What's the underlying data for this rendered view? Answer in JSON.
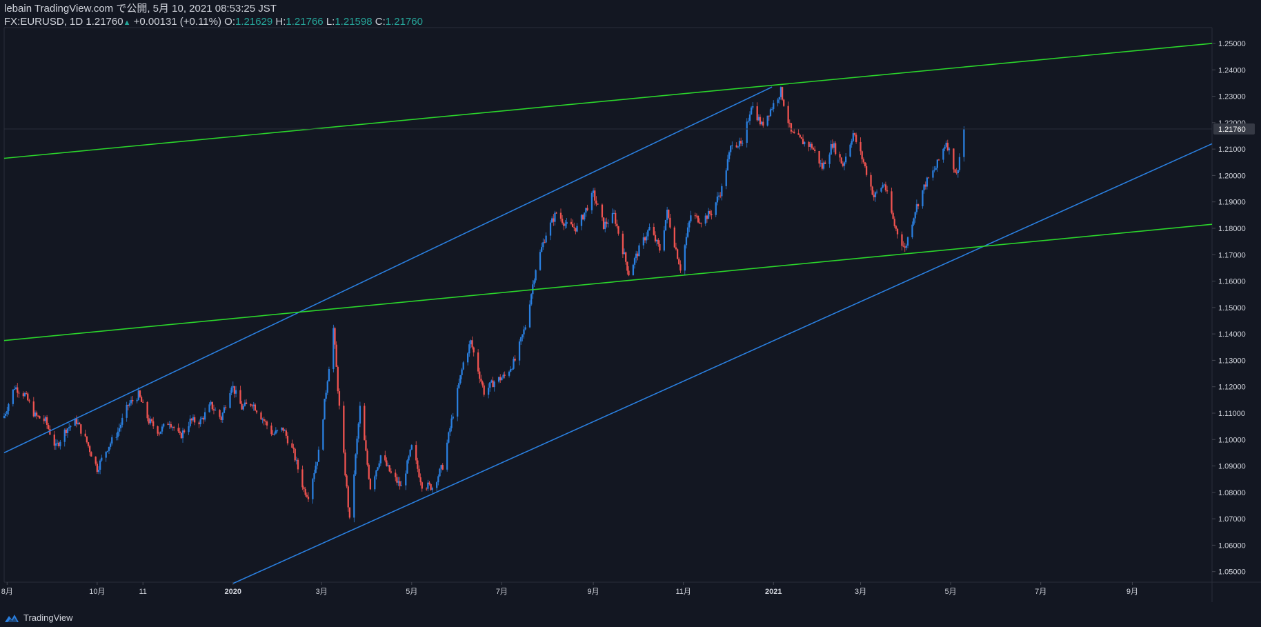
{
  "header": {
    "publish_line": "lebain TradingView.com で公開, 5月 10, 2021 08:53:25 JST",
    "symbol": "FX:EURUSD, 1D",
    "last": "1.21760",
    "change": "+0.00131 (+0.11%)",
    "o_label": "O:",
    "o_value": "1.21629",
    "h_label": "H:",
    "h_value": "1.21766",
    "l_label": "L:",
    "l_value": "1.21598",
    "c_label": "C:",
    "c_value": "1.21760"
  },
  "footer": {
    "brand": "TradingView"
  },
  "colors": {
    "background": "#131722",
    "up": "#2a7fdf",
    "down": "#ef5350",
    "trend_blue": "#2a7fdf",
    "trend_green": "#2bd62b",
    "text": "#d1d4dc",
    "accent": "#26a69a"
  },
  "chart_data": {
    "type": "candlestick",
    "symbol": "FX:EURUSD",
    "interval": "1D",
    "price_axis": {
      "ticks": [
        "1.25000",
        "1.24000",
        "1.23000",
        "1.22000",
        "1.21000",
        "1.20000",
        "1.19000",
        "1.18000",
        "1.17000",
        "1.16000",
        "1.15000",
        "1.14000",
        "1.13000",
        "1.12000",
        "1.11000",
        "1.10000",
        "1.09000",
        "1.08000",
        "1.07000",
        "1.06000",
        "1.05000"
      ],
      "range": [
        1.046,
        1.256
      ],
      "current_price_label": "1.21760",
      "current_price": 1.2176
    },
    "time_axis": {
      "ticks": [
        {
          "label": "8月",
          "date": "2019-08-01"
        },
        {
          "label": "10月",
          "date": "2019-10-01"
        },
        {
          "label": "11",
          "date": "2019-11-01"
        },
        {
          "label": "2020",
          "date": "2020-01-01"
        },
        {
          "label": "3月",
          "date": "2020-03-01"
        },
        {
          "label": "5月",
          "date": "2020-05-01"
        },
        {
          "label": "7月",
          "date": "2020-07-01"
        },
        {
          "label": "9月",
          "date": "2020-09-01"
        },
        {
          "label": "11月",
          "date": "2020-11-01"
        },
        {
          "label": "2021",
          "date": "2021-01-01"
        },
        {
          "label": "3月",
          "date": "2021-03-01"
        },
        {
          "label": "5月",
          "date": "2021-05-01"
        },
        {
          "label": "7月",
          "date": "2021-07-01"
        },
        {
          "label": "9月",
          "date": "2021-09-01"
        }
      ],
      "range": [
        "2019-07-30",
        "2021-10-25"
      ]
    },
    "price_path": [
      [
        "2019-07-30",
        1.109
      ],
      [
        "2019-08-06",
        1.12
      ],
      [
        "2019-08-13",
        1.117
      ],
      [
        "2019-08-20",
        1.109
      ],
      [
        "2019-08-27",
        1.107
      ],
      [
        "2019-09-03",
        1.097
      ],
      [
        "2019-09-10",
        1.104
      ],
      [
        "2019-09-17",
        1.107
      ],
      [
        "2019-09-24",
        1.099
      ],
      [
        "2019-10-01",
        1.089
      ],
      [
        "2019-10-08",
        1.097
      ],
      [
        "2019-10-15",
        1.103
      ],
      [
        "2019-10-22",
        1.113
      ],
      [
        "2019-10-29",
        1.117
      ],
      [
        "2019-11-05",
        1.107
      ],
      [
        "2019-11-12",
        1.103
      ],
      [
        "2019-11-19",
        1.107
      ],
      [
        "2019-11-26",
        1.101
      ],
      [
        "2019-12-03",
        1.107
      ],
      [
        "2019-12-10",
        1.107
      ],
      [
        "2019-12-17",
        1.113
      ],
      [
        "2019-12-24",
        1.108
      ],
      [
        "2019-12-31",
        1.121
      ],
      [
        "2020-01-07",
        1.112
      ],
      [
        "2020-01-14",
        1.114
      ],
      [
        "2020-01-21",
        1.108
      ],
      [
        "2020-01-28",
        1.102
      ],
      [
        "2020-02-04",
        1.104
      ],
      [
        "2020-02-11",
        1.095
      ],
      [
        "2020-02-18",
        1.081
      ],
      [
        "2020-02-21",
        1.079
      ],
      [
        "2020-02-28",
        1.095
      ],
      [
        "2020-03-06",
        1.128
      ],
      [
        "2020-03-09",
        1.142
      ],
      [
        "2020-03-13",
        1.112
      ],
      [
        "2020-03-20",
        1.069
      ],
      [
        "2020-03-27",
        1.112
      ],
      [
        "2020-04-03",
        1.082
      ],
      [
        "2020-04-10",
        1.094
      ],
      [
        "2020-04-17",
        1.087
      ],
      [
        "2020-04-24",
        1.082
      ],
      [
        "2020-05-01",
        1.097
      ],
      [
        "2020-05-08",
        1.083
      ],
      [
        "2020-05-15",
        1.082
      ],
      [
        "2020-05-22",
        1.09
      ],
      [
        "2020-05-29",
        1.11
      ],
      [
        "2020-06-05",
        1.129
      ],
      [
        "2020-06-10",
        1.137
      ],
      [
        "2020-06-19",
        1.118
      ],
      [
        "2020-06-26",
        1.122
      ],
      [
        "2020-07-03",
        1.124
      ],
      [
        "2020-07-10",
        1.13
      ],
      [
        "2020-07-17",
        1.143
      ],
      [
        "2020-07-24",
        1.165
      ],
      [
        "2020-07-31",
        1.178
      ],
      [
        "2020-08-07",
        1.186
      ],
      [
        "2020-08-14",
        1.181
      ],
      [
        "2020-08-21",
        1.18
      ],
      [
        "2020-09-01",
        1.193
      ],
      [
        "2020-09-08",
        1.181
      ],
      [
        "2020-09-15",
        1.185
      ],
      [
        "2020-09-25",
        1.163
      ],
      [
        "2020-10-02",
        1.172
      ],
      [
        "2020-10-09",
        1.18
      ],
      [
        "2020-10-16",
        1.172
      ],
      [
        "2020-10-21",
        1.186
      ],
      [
        "2020-10-30",
        1.165
      ],
      [
        "2020-11-06",
        1.185
      ],
      [
        "2020-11-13",
        1.183
      ],
      [
        "2020-11-20",
        1.186
      ],
      [
        "2020-11-27",
        1.195
      ],
      [
        "2020-12-04",
        1.213
      ],
      [
        "2020-12-11",
        1.211
      ],
      [
        "2020-12-17",
        1.227
      ],
      [
        "2020-12-24",
        1.219
      ],
      [
        "2021-01-06",
        1.232
      ],
      [
        "2021-01-13",
        1.216
      ],
      [
        "2021-01-20",
        1.213
      ],
      [
        "2021-01-27",
        1.211
      ],
      [
        "2021-02-03",
        1.203
      ],
      [
        "2021-02-10",
        1.212
      ],
      [
        "2021-02-17",
        1.204
      ],
      [
        "2021-02-24",
        1.216
      ],
      [
        "2021-03-03",
        1.205
      ],
      [
        "2021-03-10",
        1.192
      ],
      [
        "2021-03-17",
        1.197
      ],
      [
        "2021-03-24",
        1.181
      ],
      [
        "2021-03-31",
        1.172
      ],
      [
        "2021-04-07",
        1.187
      ],
      [
        "2021-04-14",
        1.197
      ],
      [
        "2021-04-21",
        1.203
      ],
      [
        "2021-04-28",
        1.213
      ],
      [
        "2021-05-05",
        1.2
      ],
      [
        "2021-05-10",
        1.2176
      ]
    ],
    "trend_lines": [
      {
        "color": "blue",
        "from": [
          "2019-07-30",
          1.095
        ],
        "to": [
          "2020-12-31",
          1.2335
        ]
      },
      {
        "color": "blue",
        "from": [
          "2020-01-01",
          1.0455
        ],
        "to": [
          "2021-10-25",
          1.212
        ]
      },
      {
        "color": "green",
        "from": [
          "2019-07-30",
          1.2065
        ],
        "to": [
          "2021-10-25",
          1.25
        ]
      },
      {
        "color": "green",
        "from": [
          "2019-07-30",
          1.1375
        ],
        "to": [
          "2021-10-25",
          1.1815
        ]
      }
    ]
  }
}
